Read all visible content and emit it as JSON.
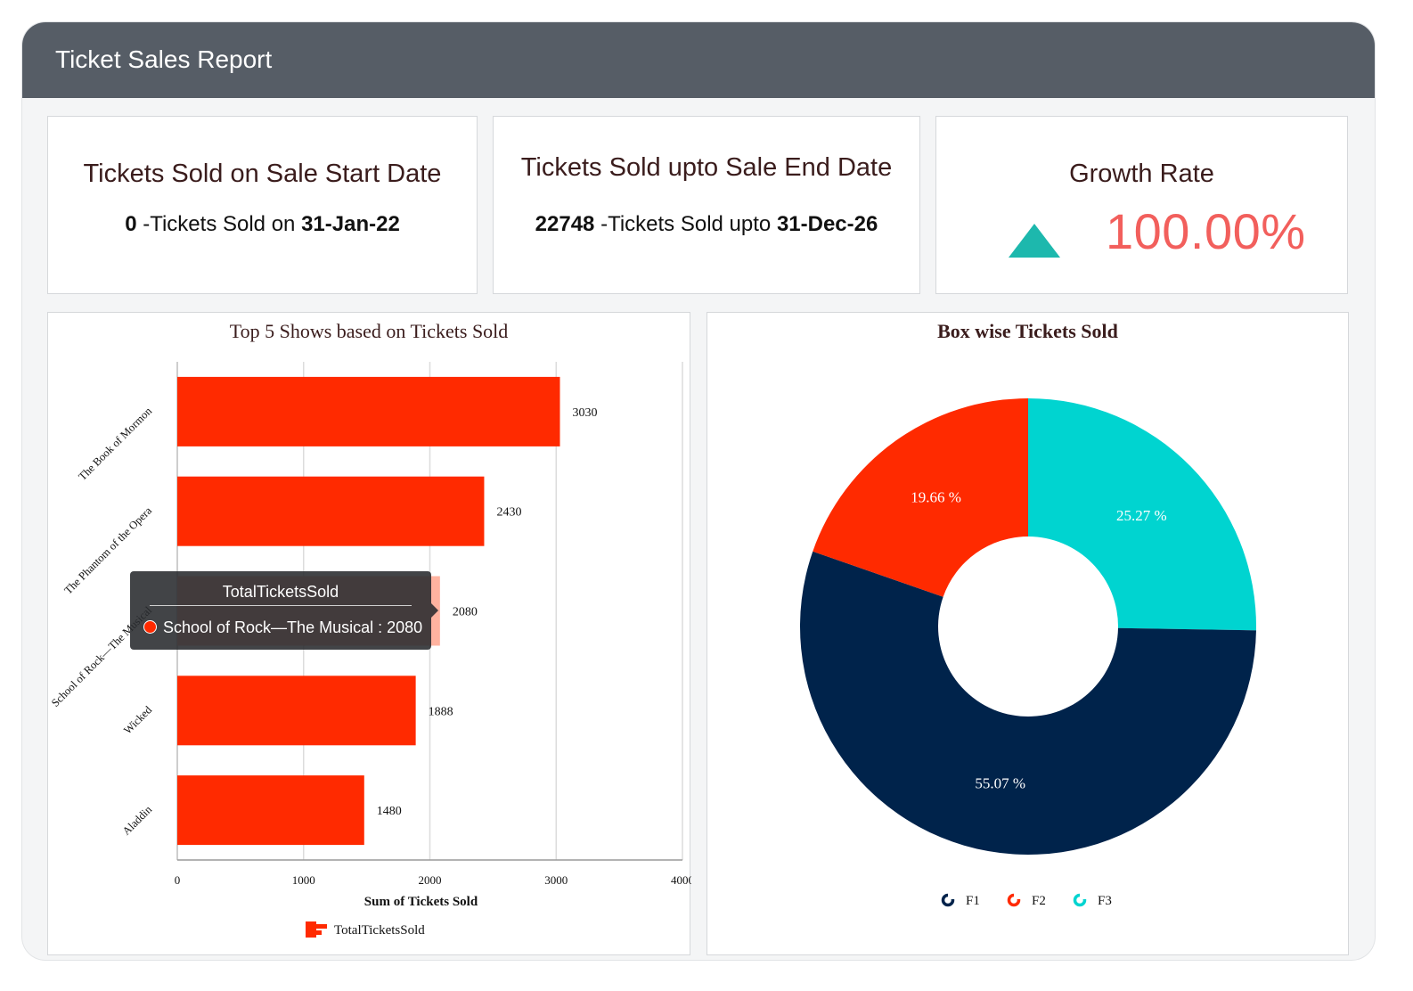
{
  "header": {
    "title": "Ticket Sales Report"
  },
  "kpis": {
    "start": {
      "title": "Tickets Sold on Sale Start Date",
      "value": "0",
      "middle": " -Tickets Sold on ",
      "date": "31-Jan-22"
    },
    "end": {
      "title": "Tickets Sold upto Sale End Date",
      "value": "22748",
      "middle": " -Tickets Sold upto ",
      "date": "31-Dec-26"
    },
    "growth": {
      "title": "Growth Rate",
      "value": "100.00%",
      "icon": "triangle-up-icon",
      "icon_color": "#1db8ad",
      "value_color": "#f25f5c"
    }
  },
  "bar_chart": {
    "title": "Top 5 Shows based on Tickets Sold",
    "legend_label": "TotalTicketsSold",
    "tooltip": {
      "header": "TotalTicketsSold",
      "body": "School of Rock—The Musical : 2080"
    }
  },
  "donut_chart": {
    "title": "Box wise Tickets Sold"
  },
  "colors": {
    "bar": "#ff2a00",
    "bar_hover": "#ffb3a0",
    "F1": "#00234b",
    "F2": "#ff2a00",
    "F3": "#00d4d0"
  },
  "chart_data": [
    {
      "type": "bar",
      "orientation": "horizontal",
      "title": "Top 5 Shows based on Tickets Sold",
      "categories": [
        "The Book of Mormon",
        "The Phantom of the Opera",
        "School of Rock—The Musical",
        "Wicked",
        "Aladdin"
      ],
      "series": [
        {
          "name": "TotalTicketsSold",
          "values": [
            3030,
            2430,
            2080,
            1888,
            1480
          ]
        }
      ],
      "xlabel": "Sum of Tickets Sold",
      "ylabel": "",
      "xlim": [
        0,
        4000
      ],
      "xticks": [
        0,
        1000,
        2000,
        3000,
        4000
      ],
      "grid": true,
      "legend": "bottom"
    },
    {
      "type": "pie",
      "donut": true,
      "title": "Box wise Tickets Sold",
      "labels": [
        "F1",
        "F2",
        "F3"
      ],
      "values": [
        55.07,
        19.66,
        25.27
      ],
      "value_labels": [
        "55.07 %",
        "19.66 %",
        "25.27 %"
      ],
      "legend": "bottom"
    }
  ]
}
